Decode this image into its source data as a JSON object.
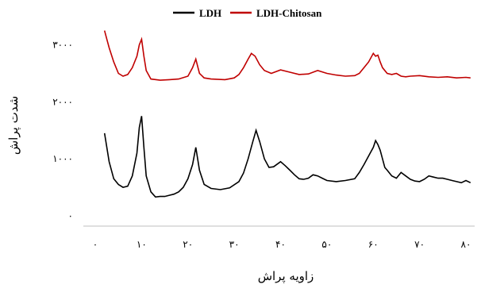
{
  "chart_data": {
    "type": "line",
    "xlabel": "زاویه پراش",
    "ylabel": "شدت پراش",
    "xlim": [
      0,
      80
    ],
    "ylim": [
      0,
      3300
    ],
    "x_ticks": [
      0,
      10,
      20,
      30,
      40,
      50,
      60,
      70,
      80
    ],
    "x_tick_labels": [
      "۰",
      "۱۰",
      "۲۰",
      "۳۰",
      "۴۰",
      "۵۰",
      "۶۰",
      "۷۰",
      "۸۰"
    ],
    "y_ticks": [
      0,
      1000,
      2000,
      3000
    ],
    "y_tick_labels": [
      "۰",
      "۱۰۰۰",
      "۲۰۰۰",
      "۳۰۰۰"
    ],
    "legend_position": "top",
    "grid": false,
    "series": [
      {
        "name": "LDH",
        "color": "#000000",
        "x": [
          2,
          3,
          4,
          5,
          6,
          7,
          8,
          9,
          9.5,
          10,
          10.5,
          11,
          12,
          13,
          14,
          15,
          16,
          17,
          18,
          19,
          20,
          21,
          21.7,
          22.5,
          23.5,
          25,
          27,
          29,
          31,
          32,
          33,
          34,
          34.7,
          35.5,
          36.5,
          37.5,
          38.5,
          40,
          41,
          42,
          43,
          44,
          45,
          46,
          47,
          48,
          49,
          50,
          52,
          54,
          56,
          57,
          58,
          59,
          60,
          60.5,
          61,
          61.5,
          62,
          62.5,
          63,
          64,
          65,
          66,
          67,
          68,
          69,
          70,
          71,
          72,
          73,
          74,
          75,
          76,
          77,
          78,
          79,
          80,
          81
        ],
        "y": [
          1450,
          950,
          650,
          550,
          500,
          520,
          700,
          1100,
          1550,
          1750,
          1200,
          700,
          420,
          330,
          340,
          340,
          360,
          380,
          420,
          500,
          650,
          900,
          1200,
          800,
          550,
          480,
          460,
          490,
          600,
          750,
          1000,
          1300,
          1500,
          1300,
          1000,
          850,
          860,
          950,
          880,
          800,
          720,
          650,
          640,
          660,
          720,
          700,
          660,
          620,
          600,
          620,
          650,
          760,
          900,
          1050,
          1200,
          1320,
          1250,
          1150,
          1000,
          850,
          800,
          700,
          660,
          760,
          700,
          640,
          610,
          600,
          640,
          700,
          680,
          660,
          660,
          640,
          620,
          600,
          580,
          620,
          580
        ]
      },
      {
        "name": "LDH-Chitosan",
        "color": "#c00000",
        "x": [
          2,
          2.5,
          3,
          4,
          5,
          6,
          7,
          8,
          9,
          9.5,
          10,
          10.5,
          11,
          12,
          14,
          16,
          18,
          20,
          21,
          21.7,
          22.5,
          23.5,
          25,
          28,
          30,
          31,
          32,
          33,
          33.7,
          34.5,
          35.5,
          36.5,
          38,
          40,
          42,
          44,
          46,
          48,
          50,
          52,
          54,
          56,
          57,
          58,
          59,
          60,
          60.5,
          61,
          61.5,
          62,
          63,
          64,
          65,
          66,
          67,
          68,
          70,
          72,
          74,
          76,
          78,
          80,
          81
        ],
        "y": [
          3250,
          3100,
          2950,
          2700,
          2500,
          2450,
          2480,
          2600,
          2800,
          3000,
          3100,
          2800,
          2550,
          2400,
          2380,
          2390,
          2400,
          2450,
          2600,
          2750,
          2500,
          2420,
          2400,
          2390,
          2420,
          2480,
          2600,
          2750,
          2850,
          2800,
          2650,
          2550,
          2500,
          2560,
          2520,
          2480,
          2490,
          2550,
          2500,
          2470,
          2450,
          2460,
          2500,
          2600,
          2700,
          2850,
          2800,
          2820,
          2700,
          2600,
          2500,
          2480,
          2500,
          2450,
          2440,
          2450,
          2460,
          2440,
          2430,
          2440,
          2420,
          2430,
          2420
        ]
      }
    ]
  }
}
